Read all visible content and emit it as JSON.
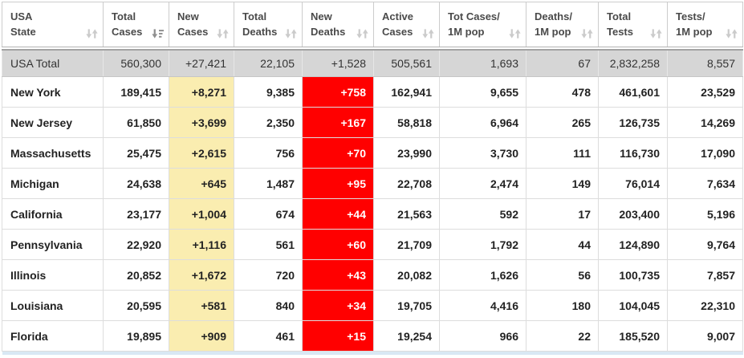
{
  "table": {
    "sorted_by": "Total Cases",
    "sort_direction": "desc",
    "columns": [
      {
        "id": "state",
        "label_lines": [
          "USA",
          "State"
        ],
        "sort": "none",
        "align": "left"
      },
      {
        "id": "total_cases",
        "label_lines": [
          "Total",
          "Cases"
        ],
        "sort": "desc",
        "align": "right"
      },
      {
        "id": "new_cases",
        "label_lines": [
          "New",
          "Cases"
        ],
        "sort": "none",
        "align": "right",
        "highlight": "yellow"
      },
      {
        "id": "total_deaths",
        "label_lines": [
          "Total",
          "Deaths"
        ],
        "sort": "none",
        "align": "right"
      },
      {
        "id": "new_deaths",
        "label_lines": [
          "New",
          "Deaths"
        ],
        "sort": "none",
        "align": "right",
        "highlight": "red"
      },
      {
        "id": "active_cases",
        "label_lines": [
          "Active",
          "Cases"
        ],
        "sort": "none",
        "align": "right"
      },
      {
        "id": "cases_per_1m",
        "label_lines": [
          "Tot Cases/",
          "1M pop"
        ],
        "sort": "none",
        "align": "right"
      },
      {
        "id": "deaths_per_1m",
        "label_lines": [
          "Deaths/",
          "1M pop"
        ],
        "sort": "none",
        "align": "right"
      },
      {
        "id": "total_tests",
        "label_lines": [
          "Total",
          "Tests"
        ],
        "sort": "none",
        "align": "right"
      },
      {
        "id": "tests_per_1m",
        "label_lines": [
          "Tests/",
          "1M pop"
        ],
        "sort": "none",
        "align": "right"
      }
    ],
    "total_row": {
      "state": "USA Total",
      "total_cases": "560,300",
      "new_cases": "+27,421",
      "total_deaths": "22,105",
      "new_deaths": "+1,528",
      "active_cases": "505,561",
      "cases_per_1m": "1,693",
      "deaths_per_1m": "67",
      "total_tests": "2,832,258",
      "tests_per_1m": "8,557"
    },
    "rows": [
      {
        "state": "New York",
        "total_cases": "189,415",
        "new_cases": "+8,271",
        "total_deaths": "9,385",
        "new_deaths": "+758",
        "active_cases": "162,941",
        "cases_per_1m": "9,655",
        "deaths_per_1m": "478",
        "total_tests": "461,601",
        "tests_per_1m": "23,529"
      },
      {
        "state": "New Jersey",
        "total_cases": "61,850",
        "new_cases": "+3,699",
        "total_deaths": "2,350",
        "new_deaths": "+167",
        "active_cases": "58,818",
        "cases_per_1m": "6,964",
        "deaths_per_1m": "265",
        "total_tests": "126,735",
        "tests_per_1m": "14,269"
      },
      {
        "state": "Massachusetts",
        "total_cases": "25,475",
        "new_cases": "+2,615",
        "total_deaths": "756",
        "new_deaths": "+70",
        "active_cases": "23,990",
        "cases_per_1m": "3,730",
        "deaths_per_1m": "111",
        "total_tests": "116,730",
        "tests_per_1m": "17,090"
      },
      {
        "state": "Michigan",
        "total_cases": "24,638",
        "new_cases": "+645",
        "total_deaths": "1,487",
        "new_deaths": "+95",
        "active_cases": "22,708",
        "cases_per_1m": "2,474",
        "deaths_per_1m": "149",
        "total_tests": "76,014",
        "tests_per_1m": "7,634"
      },
      {
        "state": "California",
        "total_cases": "23,177",
        "new_cases": "+1,004",
        "total_deaths": "674",
        "new_deaths": "+44",
        "active_cases": "21,563",
        "cases_per_1m": "592",
        "deaths_per_1m": "17",
        "total_tests": "203,400",
        "tests_per_1m": "5,196"
      },
      {
        "state": "Pennsylvania",
        "total_cases": "22,920",
        "new_cases": "+1,116",
        "total_deaths": "561",
        "new_deaths": "+60",
        "active_cases": "21,709",
        "cases_per_1m": "1,792",
        "deaths_per_1m": "44",
        "total_tests": "124,890",
        "tests_per_1m": "9,764"
      },
      {
        "state": "Illinois",
        "total_cases": "20,852",
        "new_cases": "+1,672",
        "total_deaths": "720",
        "new_deaths": "+43",
        "active_cases": "20,082",
        "cases_per_1m": "1,626",
        "deaths_per_1m": "56",
        "total_tests": "100,735",
        "tests_per_1m": "7,857"
      },
      {
        "state": "Louisiana",
        "total_cases": "20,595",
        "new_cases": "+581",
        "total_deaths": "840",
        "new_deaths": "+34",
        "active_cases": "19,705",
        "cases_per_1m": "4,416",
        "deaths_per_1m": "180",
        "total_tests": "104,045",
        "tests_per_1m": "22,310"
      },
      {
        "state": "Florida",
        "total_cases": "19,895",
        "new_cases": "+909",
        "total_deaths": "461",
        "new_deaths": "+15",
        "active_cases": "19,254",
        "cases_per_1m": "966",
        "deaths_per_1m": "22",
        "total_tests": "185,520",
        "tests_per_1m": "9,007"
      }
    ]
  },
  "icons": {
    "sort_inactive": "sort-toggle-icon",
    "sort_active_desc": "sort-desc-icon"
  },
  "colors": {
    "new_cases_bg": "#FAEDB0",
    "new_deaths_bg": "#FF0000",
    "new_deaths_text": "#FFFFFF",
    "total_row_bg": "#D6D6D6",
    "row_highlight_strip": "#D9E8F4",
    "sort_icon_inactive": "#CBCBCB",
    "sort_icon_active": "#8F8F8F",
    "header_text": "#4A4A4A",
    "cell_text": "#222222"
  }
}
